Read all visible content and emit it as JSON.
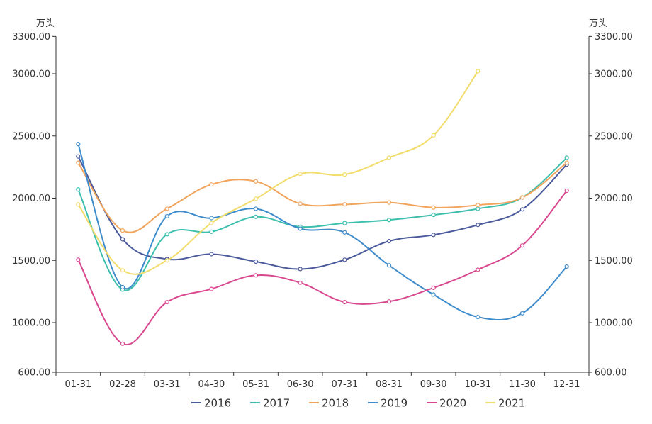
{
  "chart_data": {
    "type": "line",
    "x": [
      "01-31",
      "02-28",
      "03-31",
      "04-30",
      "05-31",
      "06-30",
      "07-31",
      "08-31",
      "09-30",
      "10-31",
      "11-30",
      "12-31"
    ],
    "y_left_unit": "万头",
    "y_right_unit": "万头",
    "y_ticks": [
      "600.00",
      "1000.00",
      "1500.00",
      "2000.00",
      "2500.00",
      "3000.00",
      "3300.00"
    ],
    "y_tick_values": [
      600,
      1000,
      1500,
      2000,
      2500,
      3000,
      3300
    ],
    "ylim": [
      600,
      3300
    ],
    "legend_position": "bottom",
    "series": [
      {
        "name": "2016",
        "color": "#4b5a9b",
        "values": [
          2335,
          1670,
          1510,
          1550,
          1490,
          1430,
          1505,
          1655,
          1705,
          1785,
          1910,
          2270
        ]
      },
      {
        "name": "2017",
        "color": "#3dbfad",
        "values": [
          2070,
          1265,
          1710,
          1730,
          1850,
          1770,
          1800,
          1825,
          1865,
          1915,
          2005,
          2325
        ]
      },
      {
        "name": "2018",
        "color": "#f0a45c",
        "values": [
          2285,
          1740,
          1915,
          2110,
          2135,
          1955,
          1950,
          1965,
          1925,
          1945,
          2005,
          2285
        ]
      },
      {
        "name": "2019",
        "color": "#3f8ccc",
        "values": [
          2435,
          1285,
          1855,
          1840,
          1915,
          1755,
          1725,
          1460,
          1225,
          1045,
          1075,
          1450
        ]
      },
      {
        "name": "2020",
        "color": "#d9488f",
        "values": [
          1505,
          830,
          1165,
          1270,
          1380,
          1320,
          1165,
          1170,
          1280,
          1425,
          1620,
          2060
        ]
      },
      {
        "name": "2021",
        "color": "#f2dc6b",
        "values": [
          1950,
          1420,
          1500,
          1800,
          1995,
          2195,
          2190,
          2325,
          2505,
          3020,
          null,
          null
        ]
      }
    ]
  }
}
